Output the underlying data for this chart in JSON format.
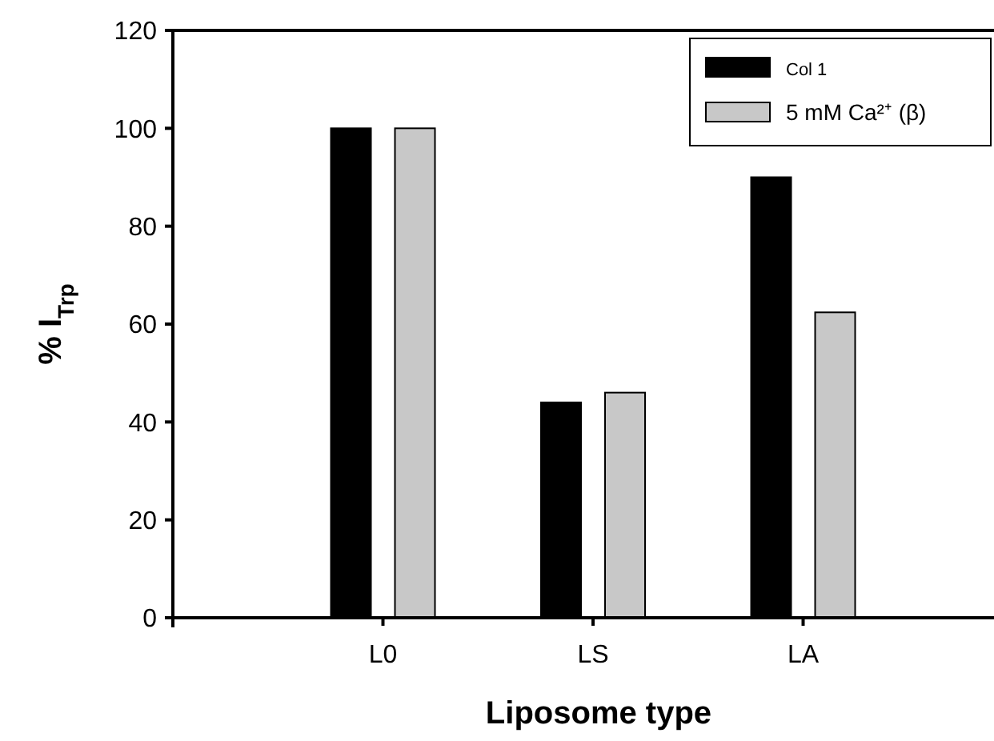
{
  "chart_data": {
    "type": "bar",
    "xlabel": "Liposome type",
    "ylabel": "% I$_{Trp}$",
    "categories": [
      null,
      "L0",
      "LS",
      "LA",
      null
    ],
    "series": [
      {
        "name": "Col 1",
        "color": "#000000",
        "values": [
          null,
          100,
          44,
          90,
          null
        ]
      },
      {
        "name": "5 mM Ca²⁺ (β)",
        "color": "#c8c8c8",
        "values": [
          null,
          100,
          46,
          62.4,
          null
        ]
      }
    ],
    "ylim": [
      0,
      120
    ],
    "yticks": [
      0,
      20,
      40,
      60,
      80,
      100,
      120
    ],
    "legend": "top right"
  }
}
